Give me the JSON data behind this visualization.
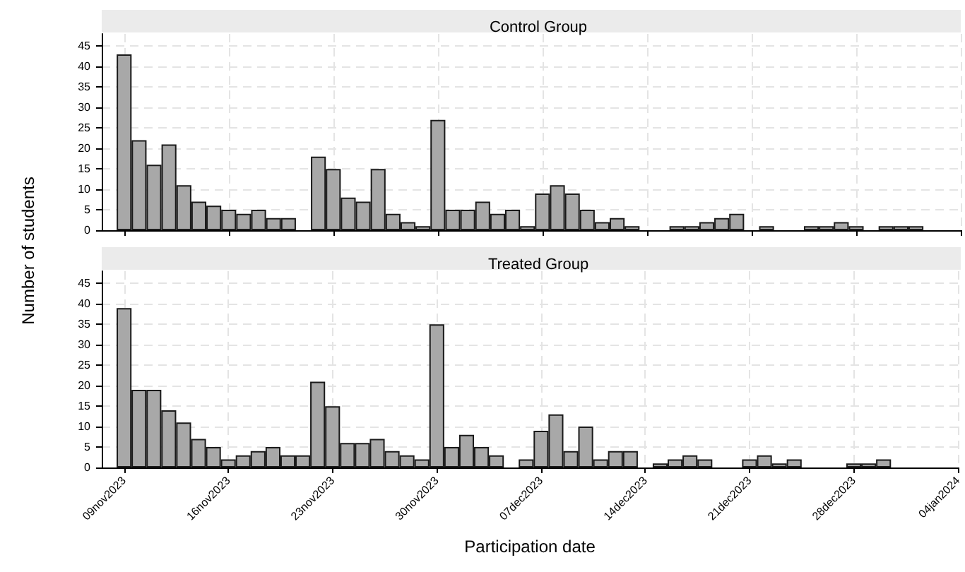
{
  "chart_data": [
    {
      "type": "bar",
      "title": "Control Group",
      "ylabel": "Number of students",
      "color": "#a8a8a8",
      "grid": true,
      "tick_labels": "y",
      "x": [
        "2023-11-09",
        "2023-11-10",
        "2023-11-11",
        "2023-11-12",
        "2023-11-13",
        "2023-11-14",
        "2023-11-15",
        "2023-11-16",
        "2023-11-17",
        "2023-11-18",
        "2023-11-19",
        "2023-11-20",
        "2023-11-22",
        "2023-11-23",
        "2023-11-24",
        "2023-11-25",
        "2023-11-26",
        "2023-11-27",
        "2023-11-28",
        "2023-11-29",
        "2023-11-30",
        "2023-12-01",
        "2023-12-02",
        "2023-12-03",
        "2023-12-04",
        "2023-12-05",
        "2023-12-06",
        "2023-12-07",
        "2023-12-08",
        "2023-12-09",
        "2023-12-10",
        "2023-12-11",
        "2023-12-12",
        "2023-12-13",
        "2023-12-16",
        "2023-12-17",
        "2023-12-18",
        "2023-12-19",
        "2023-12-20",
        "2023-12-22",
        "2023-12-25",
        "2023-12-26",
        "2023-12-27",
        "2023-12-28",
        "2023-12-30",
        "2023-12-31",
        "2024-01-01"
      ],
      "values": [
        43,
        22,
        16,
        21,
        11,
        7,
        6,
        5,
        4,
        5,
        3,
        3,
        18,
        15,
        8,
        7,
        15,
        4,
        2,
        1,
        27,
        5,
        5,
        7,
        4,
        5,
        1,
        9,
        11,
        9,
        5,
        2,
        3,
        1,
        1,
        1,
        2,
        3,
        4,
        1,
        1,
        1,
        2,
        1,
        1,
        1,
        1
      ],
      "xlim": [
        "2023-11-07T12:00",
        "2024-01-04"
      ],
      "ylim": [
        0,
        48
      ],
      "yticks": [
        0,
        5,
        10,
        15,
        20,
        25,
        30,
        35,
        40,
        45
      ]
    },
    {
      "type": "bar",
      "title": "Treated Group",
      "xlabel": "Participation date",
      "color": "#a8a8a8",
      "grid": true,
      "x": [
        "2023-11-09",
        "2023-11-10",
        "2023-11-11",
        "2023-11-12",
        "2023-11-13",
        "2023-11-14",
        "2023-11-15",
        "2023-11-16",
        "2023-11-17",
        "2023-11-18",
        "2023-11-19",
        "2023-11-20",
        "2023-11-21",
        "2023-11-22",
        "2023-11-23",
        "2023-11-24",
        "2023-11-25",
        "2023-11-26",
        "2023-11-27",
        "2023-11-28",
        "2023-11-29",
        "2023-11-30",
        "2023-12-01",
        "2023-12-02",
        "2023-12-03",
        "2023-12-04",
        "2023-12-06",
        "2023-12-07",
        "2023-12-08",
        "2023-12-09",
        "2023-12-10",
        "2023-12-11",
        "2023-12-12",
        "2023-12-13",
        "2023-12-15",
        "2023-12-16",
        "2023-12-17",
        "2023-12-18",
        "2023-12-21",
        "2023-12-22",
        "2023-12-23",
        "2023-12-24",
        "2023-12-28",
        "2023-12-29",
        "2023-12-30"
      ],
      "values": [
        39,
        19,
        19,
        14,
        11,
        7,
        5,
        2,
        3,
        4,
        5,
        3,
        3,
        21,
        15,
        6,
        6,
        7,
        4,
        3,
        2,
        35,
        5,
        8,
        5,
        3,
        2,
        9,
        13,
        4,
        10,
        2,
        4,
        4,
        1,
        2,
        3,
        2,
        2,
        3,
        1,
        2,
        1,
        1,
        2
      ],
      "xlim": [
        "2023-11-07T12:00",
        "2024-01-04"
      ],
      "xticks": [
        {
          "value": "2023-11-09",
          "label": "09nov2023"
        },
        {
          "value": "2023-11-16",
          "label": "16nov2023"
        },
        {
          "value": "2023-11-23",
          "label": "23nov2023"
        },
        {
          "value": "2023-11-30",
          "label": "30nov2023"
        },
        {
          "value": "2023-12-07",
          "label": "07dec2023"
        },
        {
          "value": "2023-12-14",
          "label": "14dec2023"
        },
        {
          "value": "2023-12-21",
          "label": "21dec2023"
        },
        {
          "value": "2023-12-28",
          "label": "28dec2023"
        },
        {
          "value": "2024-01-04",
          "label": "04jan2024"
        }
      ],
      "ylim": [
        0,
        48
      ],
      "yticks": [
        0,
        5,
        10,
        15,
        20,
        25,
        30,
        35,
        40,
        45
      ]
    }
  ]
}
